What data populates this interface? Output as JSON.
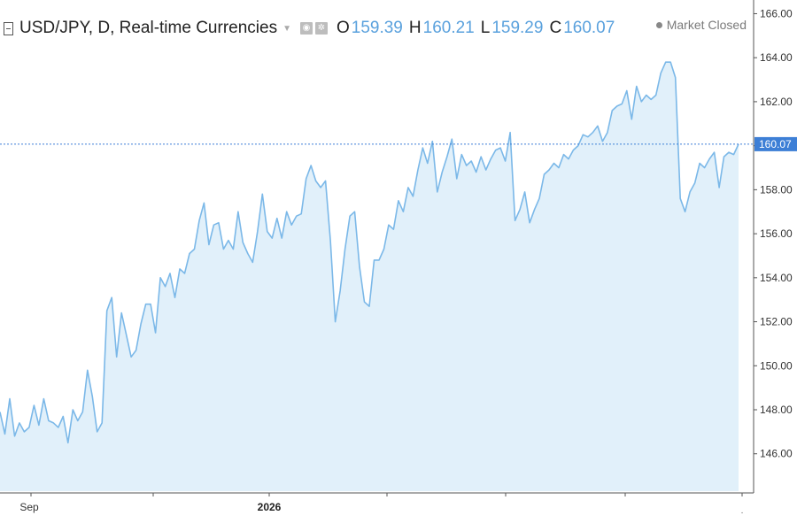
{
  "header": {
    "symbol_title": "USD/JPY, D, Real-time Currencies",
    "ohlc": [
      {
        "key": "O",
        "value": "159.39"
      },
      {
        "key": "H",
        "value": "160.21"
      },
      {
        "key": "L",
        "value": "159.29"
      },
      {
        "key": "C",
        "value": "160.07"
      }
    ],
    "market_status": "Market Closed"
  },
  "colors": {
    "line": "#7bb8e8",
    "area": "#e1f0fa",
    "text_value": "#5aa1dd",
    "badge": "#3d7fd6"
  },
  "chart_data": {
    "type": "area",
    "title": "USD/JPY, D, Real-time Currencies",
    "ylim": [
      144.3,
      166.3
    ],
    "y_ticks": [
      "146.00",
      "148.00",
      "150.00",
      "152.00",
      "154.00",
      "156.00",
      "158.00",
      "160.00",
      "162.00",
      "164.00",
      "166.00"
    ],
    "x_tick_labels": [
      "Sep",
      "2026"
    ],
    "last_price_label": "160.07",
    "series": [
      {
        "values": [
          147.9,
          146.9,
          148.5,
          146.8,
          147.4,
          147.0,
          147.2,
          148.2,
          147.3,
          148.5,
          147.5,
          147.4,
          147.2,
          147.7,
          146.5,
          148.0,
          147.5,
          147.9,
          149.8,
          148.6,
          147.0,
          147.4,
          152.5,
          153.1,
          150.4,
          152.4,
          151.4,
          150.4,
          150.7,
          151.9,
          152.8,
          152.8,
          151.5,
          154.0,
          153.6,
          154.2,
          153.1,
          154.4,
          154.2,
          155.1,
          155.3,
          156.6,
          157.4,
          155.5,
          156.4,
          156.5,
          155.3,
          155.7,
          155.3,
          157.0,
          155.6,
          155.1,
          154.7,
          156.1,
          157.8,
          156.1,
          155.8,
          156.7,
          155.8,
          157.0,
          156.4,
          156.8,
          156.9,
          158.5,
          159.1,
          158.4,
          158.1,
          158.4,
          155.7,
          152.0,
          153.4,
          155.3,
          156.8,
          157.0,
          154.5,
          152.9,
          152.7,
          154.8,
          154.8,
          155.3,
          156.4,
          156.2,
          157.5,
          157.0,
          158.1,
          157.7,
          158.9,
          159.9,
          159.2,
          160.2,
          157.9,
          158.8,
          159.5,
          160.3,
          158.5,
          159.6,
          159.1,
          159.3,
          158.8,
          159.5,
          158.9,
          159.4,
          159.8,
          159.9,
          159.3,
          160.6,
          156.6,
          157.1,
          157.9,
          156.5,
          157.1,
          157.6,
          158.7,
          158.9,
          159.2,
          159.0,
          159.6,
          159.4,
          159.8,
          160.0,
          160.5,
          160.4,
          160.6,
          160.9,
          160.2,
          160.6,
          161.6,
          161.8,
          161.9,
          162.5,
          161.2,
          162.7,
          162.0,
          162.3,
          162.1,
          162.3,
          163.3,
          163.8,
          163.8,
          163.1,
          157.6,
          157.0,
          157.9,
          158.3,
          159.2,
          159.0,
          159.4,
          159.7,
          158.1,
          159.5,
          159.7,
          159.6,
          160.07
        ]
      }
    ]
  }
}
